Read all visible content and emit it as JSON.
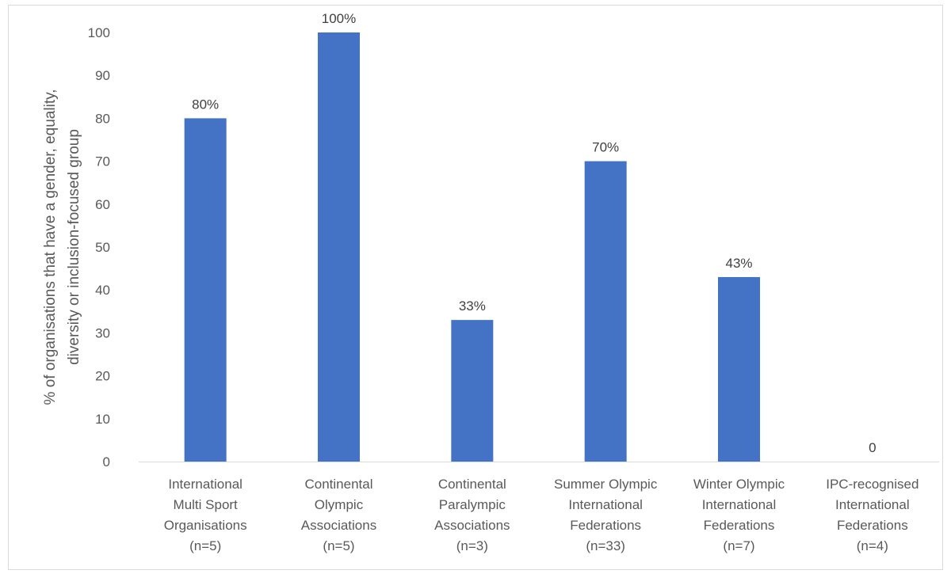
{
  "chart_data": {
    "type": "bar",
    "title": "",
    "ylabel_lines": [
      "% of organisations that have a gender, equality,",
      "diversity or inclusion-focused group"
    ],
    "xlabel": "",
    "ylim": [
      0,
      100
    ],
    "yticks": [
      0,
      10,
      20,
      30,
      40,
      50,
      60,
      70,
      80,
      90,
      100
    ],
    "grid": false,
    "legend": "none",
    "bar_color": "#4472C4",
    "categories": [
      [
        "International",
        "Multi Sport",
        "Organisations",
        "(n=5)"
      ],
      [
        "Continental",
        "Olympic",
        "Associations",
        "(n=5)"
      ],
      [
        "Continental",
        "Paralympic",
        "Associations",
        "(n=3)"
      ],
      [
        "Summer Olympic",
        "International",
        "Federations",
        "(n=33)"
      ],
      [
        "Winter Olympic",
        "International",
        "Federations",
        "(n=7)"
      ],
      [
        "IPC-recognised",
        "International",
        "Federations",
        "(n=4)"
      ]
    ],
    "values": [
      80,
      100,
      33,
      70,
      43,
      0
    ],
    "data_labels": [
      "80%",
      "100%",
      "33%",
      "70%",
      "43%",
      "0"
    ]
  }
}
